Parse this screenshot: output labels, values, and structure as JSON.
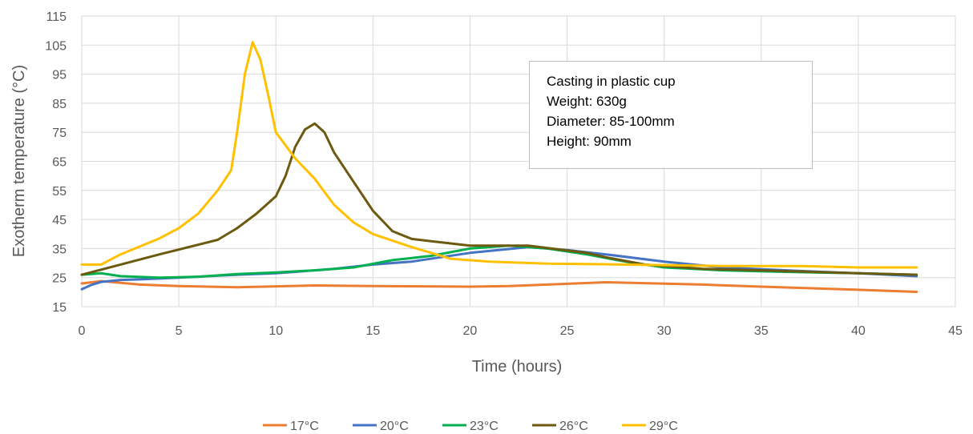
{
  "chart_data": {
    "type": "line",
    "xlabel": "Time (hours)",
    "ylabel": "Exotherm temperature (°C)",
    "xlim": [
      0,
      45
    ],
    "ylim": [
      15,
      115
    ],
    "xticks": [
      "0",
      "5",
      "10",
      "15",
      "20",
      "25",
      "30",
      "35",
      "40",
      "45"
    ],
    "yticks": [
      "15",
      "25",
      "35",
      "45",
      "55",
      "65",
      "75",
      "85",
      "95",
      "105",
      "115"
    ],
    "grid": true,
    "legend_position": "bottom",
    "annotation": [
      "Casting in plastic cup",
      "Weight: 630g",
      "Diameter: 85-100mm",
      "Height: 90mm"
    ],
    "series": [
      {
        "name": "17°C",
        "color": "#ED7D31",
        "x": [
          0,
          1,
          3,
          5,
          8,
          12,
          15,
          20,
          22,
          27,
          32,
          35,
          40,
          43
        ],
        "y": [
          23,
          23.8,
          22.6,
          22.1,
          21.7,
          22.3,
          22.1,
          21.9,
          22.1,
          23.4,
          22.6,
          21.9,
          20.8,
          20.1
        ]
      },
      {
        "name": "20°C",
        "color": "#4472C4",
        "x": [
          0,
          0.5,
          1,
          2,
          3,
          5,
          8,
          10,
          13,
          15,
          17,
          20,
          23,
          25,
          27,
          30,
          33,
          37,
          40,
          43
        ],
        "y": [
          21,
          22.5,
          23.5,
          24.2,
          24.4,
          25,
          26,
          26.5,
          28,
          29.5,
          30.5,
          33.5,
          35.5,
          34.5,
          33,
          30.5,
          28.5,
          27.3,
          26.5,
          25.5
        ]
      },
      {
        "name": "23°C",
        "color": "#00B050",
        "x": [
          0,
          1,
          2,
          4,
          6,
          8,
          10,
          12,
          14,
          16,
          18,
          20,
          22,
          24,
          26,
          28,
          30,
          33,
          36,
          40,
          43
        ],
        "y": [
          26,
          26.5,
          25.5,
          25,
          25.3,
          26.2,
          26.8,
          27.5,
          28.5,
          31,
          32.5,
          35,
          36,
          35,
          33,
          30.5,
          28.5,
          27.5,
          27,
          26.5,
          26
        ]
      },
      {
        "name": "26°C",
        "color": "#6B5A0F",
        "x": [
          0,
          2,
          4,
          7,
          8,
          9,
          10,
          10.5,
          11,
          11.5,
          12,
          12.5,
          13,
          14,
          15,
          16,
          17,
          18,
          20,
          23,
          26,
          27,
          29,
          32,
          35,
          40,
          43
        ],
        "y": [
          26,
          29.5,
          33,
          38,
          42,
          47,
          53,
          60,
          70,
          76,
          78,
          75,
          68,
          58,
          48,
          41,
          38.3,
          37.5,
          36,
          36,
          33.5,
          32,
          29.5,
          28,
          27.5,
          26.5,
          26
        ]
      },
      {
        "name": "29°C",
        "color": "#FFC000",
        "x": [
          0,
          1,
          2,
          4,
          5,
          6,
          7,
          7.7,
          8,
          8.4,
          8.8,
          9.2,
          9.6,
          10,
          11,
          12,
          13,
          14,
          15,
          17,
          19,
          21,
          24,
          27,
          30,
          33,
          37,
          40,
          43
        ],
        "y": [
          29.5,
          29.5,
          33,
          38.5,
          42,
          47,
          55,
          62,
          75,
          95,
          106,
          100,
          88,
          75,
          66,
          59,
          50,
          44,
          40,
          35.5,
          31.5,
          30.5,
          29.8,
          29.6,
          29.3,
          29,
          29,
          28.5,
          28.5
        ]
      }
    ]
  }
}
